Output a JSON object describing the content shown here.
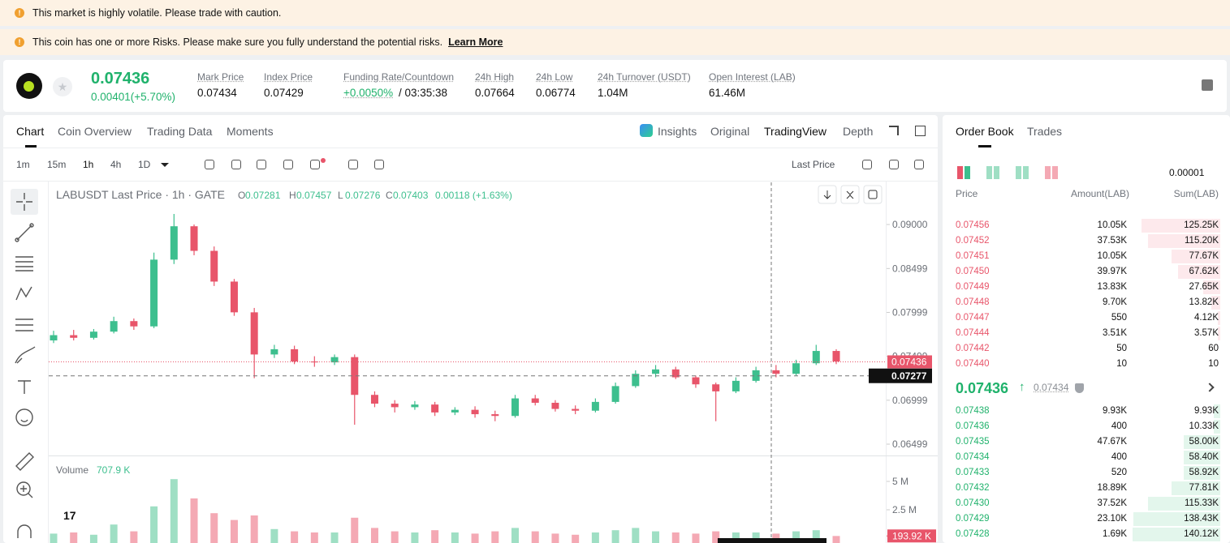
{
  "banners": [
    "This market is highly volatile. Please trade with caution.",
    "This coin has one or more Risks. Please make sure you fully understand the potential risks."
  ],
  "banner_link": "Learn More",
  "header": {
    "price": "0.07436",
    "change": "0.00401(+5.70%)",
    "stats": [
      {
        "label": "Mark Price",
        "value": "0.07434"
      },
      {
        "label": "Index Price",
        "value": "0.07429"
      },
      {
        "label": "Funding Rate/Countdown",
        "value": "+0.0050%",
        "countdown": "/ 03:35:38"
      },
      {
        "label": "24h High",
        "value": "0.07664"
      },
      {
        "label": "24h Low",
        "value": "0.06774"
      },
      {
        "label": "24h Turnover (USDT)",
        "value": "1.04M"
      },
      {
        "label": "Open Interest (LAB)",
        "value": "61.46M"
      }
    ]
  },
  "tabs": [
    "Chart",
    "Coin Overview",
    "Trading Data",
    "Moments"
  ],
  "view_tabs": [
    "Insights",
    "Original",
    "TradingView",
    "Depth"
  ],
  "intervals": [
    "1m",
    "15m",
    "1h",
    "4h",
    "1D"
  ],
  "price_type": "Last Price",
  "chart_data": {
    "type": "candlestick",
    "title": "LABUSDT Last Price · 1h · GATE",
    "ohlc_legend": [
      {
        "label": "O",
        "value": "0.07281"
      },
      {
        "label": "H",
        "value": "0.07457"
      },
      {
        "label": "L",
        "value": "0.07276"
      },
      {
        "label": "C",
        "value": "0.07403"
      }
    ],
    "change": "0.00118 (+1.63%)",
    "open": [
      0.0768,
      0.0774,
      0.0771,
      0.0778,
      0.079,
      0.0784,
      0.086,
      0.0898,
      0.087,
      0.0835,
      0.08,
      0.0752,
      0.0758,
      0.0744,
      0.0743,
      0.0749,
      0.0706,
      0.0696,
      0.0692,
      0.0695,
      0.0686,
      0.0689,
      0.0684,
      0.0682,
      0.0702,
      0.0697,
      0.069,
      0.0688,
      0.0698,
      0.0716,
      0.073,
      0.0735,
      0.0726,
      0.0718,
      0.071,
      0.0722,
      0.0734,
      0.073,
      0.0742,
      0.0756
    ],
    "high": [
      0.0779,
      0.078,
      0.0781,
      0.0795,
      0.0793,
      0.0868,
      0.0912,
      0.09,
      0.0875,
      0.0838,
      0.0805,
      0.0763,
      0.0762,
      0.075,
      0.0752,
      0.0752,
      0.071,
      0.07,
      0.0699,
      0.0698,
      0.0692,
      0.0693,
      0.0688,
      0.0706,
      0.0706,
      0.07,
      0.0694,
      0.0702,
      0.072,
      0.0734,
      0.074,
      0.0738,
      0.0728,
      0.072,
      0.0726,
      0.0738,
      0.074,
      0.0746,
      0.0763,
      0.0758
    ],
    "low": [
      0.0765,
      0.0768,
      0.0769,
      0.0776,
      0.078,
      0.0782,
      0.0855,
      0.0865,
      0.083,
      0.0796,
      0.0725,
      0.0748,
      0.0741,
      0.0738,
      0.074,
      0.0672,
      0.0692,
      0.0686,
      0.0689,
      0.0682,
      0.0683,
      0.068,
      0.0676,
      0.068,
      0.0694,
      0.0687,
      0.0684,
      0.0686,
      0.0696,
      0.0714,
      0.0726,
      0.0724,
      0.0714,
      0.0676,
      0.0708,
      0.072,
      0.0726,
      0.0728,
      0.074,
      0.0741
    ],
    "close": [
      0.0774,
      0.0771,
      0.0778,
      0.079,
      0.0784,
      0.086,
      0.0898,
      0.087,
      0.0835,
      0.08,
      0.0752,
      0.0758,
      0.0744,
      0.0743,
      0.0749,
      0.0706,
      0.0696,
      0.0692,
      0.0695,
      0.0686,
      0.0689,
      0.0684,
      0.0682,
      0.0702,
      0.0697,
      0.069,
      0.0688,
      0.0698,
      0.0716,
      0.073,
      0.0735,
      0.0726,
      0.0718,
      0.071,
      0.0722,
      0.0734,
      0.073,
      0.0742,
      0.0756,
      0.0744
    ],
    "up_color": "#3dbf8e",
    "down_color": "#e8556a",
    "ylim": [
      0.0637,
      0.0948
    ],
    "yticks": [
      {
        "value": 0.09,
        "label": "0.09000"
      },
      {
        "value": 0.08499,
        "label": "0.08499"
      },
      {
        "value": 0.07999,
        "label": "0.07999"
      },
      {
        "value": 0.07499,
        "label": "0.07499"
      },
      {
        "value": 0.06999,
        "label": "0.06999"
      },
      {
        "value": 0.06499,
        "label": "0.06499"
      }
    ],
    "last_price": 0.07436,
    "crosshair_price": 0.07277,
    "volume": {
      "title": "Volume",
      "total": "707.9 K",
      "values": [
        400000,
        500000,
        300000,
        1200000,
        600000,
        2800000,
        5200000,
        3500000,
        2200000,
        1600000,
        2000000,
        800000,
        600000,
        500000,
        500000,
        1800000,
        900000,
        600000,
        500000,
        700000,
        500000,
        400000,
        600000,
        900000,
        600000,
        400000,
        300000,
        500000,
        700000,
        900000,
        600000,
        500000,
        400000,
        600000,
        500000,
        500000,
        400000,
        600000,
        700000,
        190000
      ],
      "ylim": [
        0,
        7000000
      ],
      "yticks": [
        {
          "value": 5000000,
          "label": "5 M"
        },
        {
          "value": 2500000,
          "label": "2.5 M"
        }
      ],
      "last": {
        "value": 193920,
        "label": "193.92 K"
      }
    }
  },
  "order_book": {
    "tabs": [
      "Order Book",
      "Trades"
    ],
    "precision": "0.00001",
    "columns": [
      "Price",
      "Amount(LAB)",
      "Sum(LAB)"
    ],
    "asks": [
      [
        "0.07456",
        "10.05K",
        "125.25K"
      ],
      [
        "0.07452",
        "37.53K",
        "115.20K"
      ],
      [
        "0.07451",
        "10.05K",
        "77.67K"
      ],
      [
        "0.07450",
        "39.97K",
        "67.62K"
      ],
      [
        "0.07449",
        "13.83K",
        "27.65K"
      ],
      [
        "0.07448",
        "9.70K",
        "13.82K"
      ],
      [
        "0.07447",
        "550",
        "4.12K"
      ],
      [
        "0.07444",
        "3.51K",
        "3.57K"
      ],
      [
        "0.07442",
        "50",
        "60"
      ],
      [
        "0.07440",
        "10",
        "10"
      ]
    ],
    "mid_price": "0.07436",
    "mark_price": "0.07434",
    "bids": [
      [
        "0.07438",
        "9.93K",
        "9.93K"
      ],
      [
        "0.07436",
        "400",
        "10.33K"
      ],
      [
        "0.07435",
        "47.67K",
        "58.00K"
      ],
      [
        "0.07434",
        "400",
        "58.40K"
      ],
      [
        "0.07433",
        "520",
        "58.92K"
      ],
      [
        "0.07432",
        "18.89K",
        "77.81K"
      ],
      [
        "0.07430",
        "37.52K",
        "115.33K"
      ],
      [
        "0.07429",
        "23.10K",
        "138.43K"
      ],
      [
        "0.07428",
        "1.69K",
        "140.12K"
      ]
    ]
  }
}
